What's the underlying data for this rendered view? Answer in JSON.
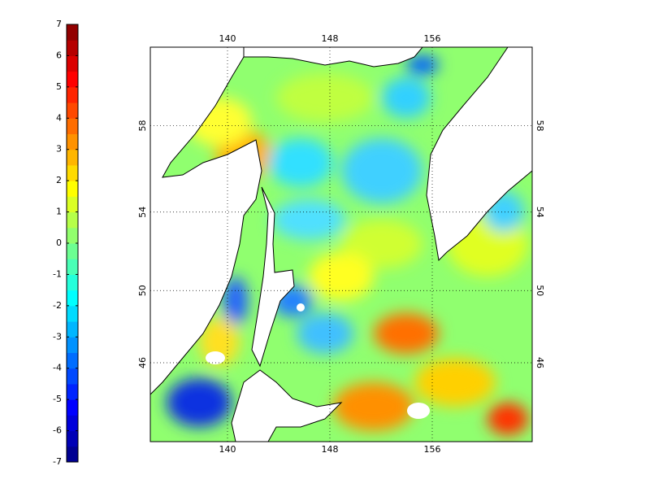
{
  "colorbar": {
    "clim": [
      -7,
      7
    ],
    "ticks": [
      -7,
      -6,
      -5,
      -4,
      -3,
      -2,
      -1,
      0,
      1,
      2,
      3,
      4,
      5,
      6,
      7
    ]
  },
  "map": {
    "lon_ticks": [
      140,
      148,
      156
    ],
    "lat_ticks": [
      46,
      50,
      54,
      58
    ]
  }
}
